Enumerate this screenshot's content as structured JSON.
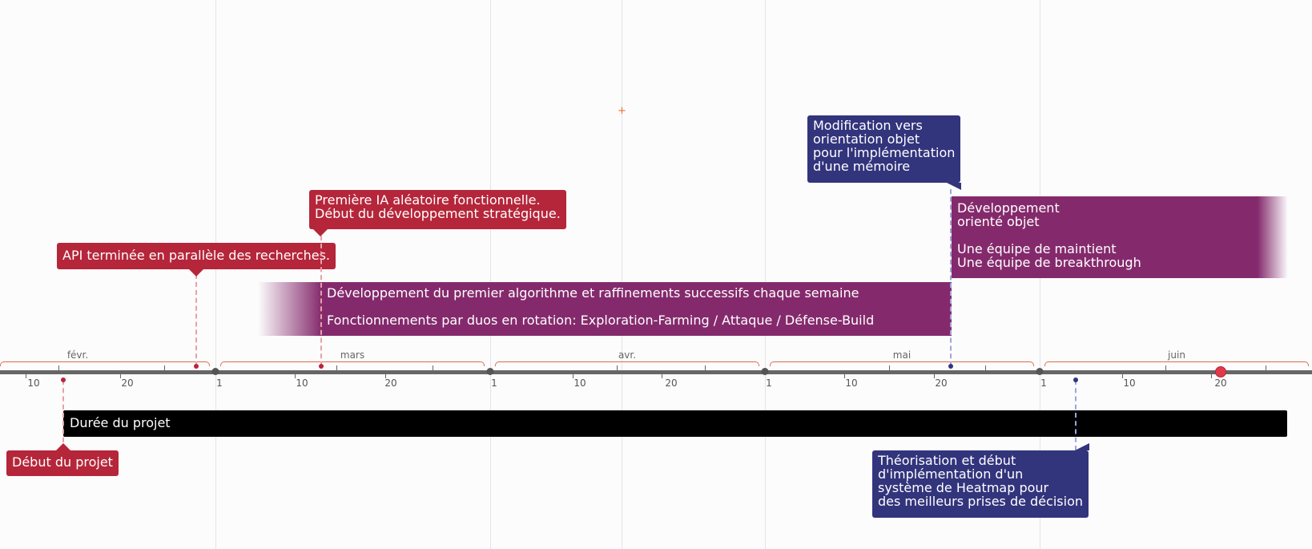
{
  "timeline": {
    "months": [
      "févr.",
      "mars",
      "avr.",
      "mai",
      "juin"
    ],
    "day_labels": [
      "10",
      "20",
      "1",
      "10",
      "20",
      "1",
      "10",
      "20",
      "1",
      "10",
      "20",
      "1",
      "10",
      "20"
    ]
  },
  "bars": {
    "project": "Durée du projet",
    "dev_algo_line1": "Développement du premier algorithme et raffinements successifs chaque semaine",
    "dev_algo_line2": "Fonctionnements par duos en rotation:  Exploration-Farming / Attaque / Défense-Build",
    "dev_oo_lines": [
      "Développement",
      "orienté objet",
      "",
      "Une équipe de maintient",
      "Une équipe de breakthrough"
    ]
  },
  "callouts": {
    "start": "Début du projet",
    "api": "API terminée en parallèle des recherches.",
    "first_ai": [
      "Première IA aléatoire fonctionnelle.",
      "Début du développement stratégique."
    ],
    "oo_change": [
      "Modification vers",
      "orientation objet",
      "pour l'implémentation",
      "d'une mémoire"
    ],
    "heatmap": [
      "Théorisation et début",
      "d'implémentation d'un",
      "système de Heatmap pour",
      "des meilleurs prises de décision"
    ]
  },
  "colors": {
    "red": "#b5263a",
    "navy": "#32347c",
    "purple": "#842a6c",
    "black": "#000000",
    "axis": "#666666",
    "bracket": "#e06a4a"
  }
}
